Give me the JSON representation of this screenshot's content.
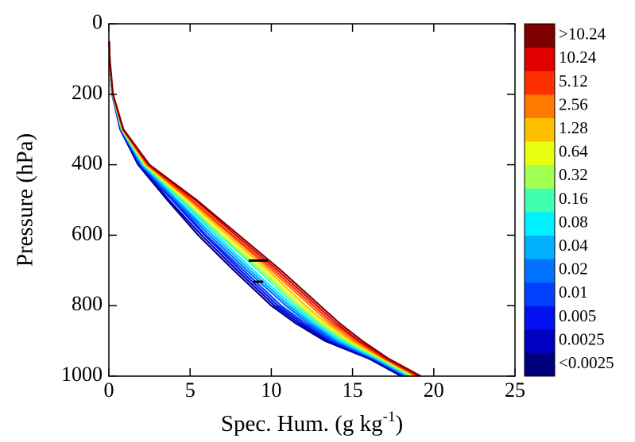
{
  "chart_data": {
    "type": "line",
    "xlabel": [
      "Spec. Hum. (g kg",
      "-1",
      ")"
    ],
    "ylabel": "Pressure (hPa)",
    "xlim": [
      0,
      25
    ],
    "xticks": [
      0,
      5,
      10,
      15,
      20,
      25
    ],
    "ylim": [
      0,
      1000
    ],
    "yticks": [
      0,
      200,
      400,
      600,
      800,
      1000
    ],
    "y_inverted": true,
    "pressure": [
      1000,
      950,
      900,
      850,
      800,
      700,
      600,
      500,
      400,
      300,
      200,
      100,
      50
    ],
    "series": [
      {
        "name": "<0.0025",
        "color": "#00007f",
        "values": [
          18.0,
          16.0,
          13.3,
          11.5,
          10.0,
          7.7,
          5.5,
          3.6,
          1.8,
          0.7,
          0.2,
          0.05,
          0.02
        ]
      },
      {
        "name": "0.0025",
        "color": "#0000c0",
        "values": [
          18.1,
          16.1,
          13.5,
          11.7,
          10.2,
          7.9,
          5.7,
          3.7,
          1.85,
          0.71,
          0.2,
          0.05,
          0.02
        ]
      },
      {
        "name": "0.005",
        "color": "#0010f0",
        "values": [
          18.2,
          16.2,
          13.6,
          11.9,
          10.4,
          8.1,
          5.9,
          3.9,
          1.9,
          0.73,
          0.21,
          0.05,
          0.02
        ]
      },
      {
        "name": "0.01",
        "color": "#0040ff",
        "values": [
          18.3,
          16.3,
          13.8,
          12.1,
          10.6,
          8.3,
          6.0,
          4.0,
          1.95,
          0.74,
          0.21,
          0.05,
          0.02
        ]
      },
      {
        "name": "0.02",
        "color": "#0070ff",
        "values": [
          18.3,
          16.3,
          14.0,
          12.3,
          10.9,
          8.5,
          6.2,
          4.1,
          2.0,
          0.76,
          0.21,
          0.05,
          0.02
        ]
      },
      {
        "name": "0.04",
        "color": "#00b0ff",
        "values": [
          18.4,
          16.4,
          14.1,
          12.5,
          11.1,
          8.7,
          6.4,
          4.2,
          2.05,
          0.77,
          0.22,
          0.05,
          0.02
        ]
      },
      {
        "name": "0.08",
        "color": "#00f0ff",
        "values": [
          18.5,
          16.5,
          14.3,
          12.7,
          11.3,
          8.9,
          6.6,
          4.4,
          2.1,
          0.79,
          0.22,
          0.05,
          0.02
        ]
      },
      {
        "name": "0.16",
        "color": "#40ffb0",
        "values": [
          18.6,
          16.6,
          14.5,
          12.9,
          11.5,
          9.2,
          6.8,
          4.5,
          2.15,
          0.8,
          0.23,
          0.05,
          0.02
        ]
      },
      {
        "name": "0.32",
        "color": "#a0ff50",
        "values": [
          18.7,
          16.7,
          14.6,
          13.0,
          11.7,
          9.4,
          6.9,
          4.6,
          2.2,
          0.81,
          0.23,
          0.05,
          0.02
        ]
      },
      {
        "name": "0.64",
        "color": "#e8ff10",
        "values": [
          18.8,
          16.8,
          14.8,
          13.2,
          11.9,
          9.6,
          7.1,
          4.8,
          2.25,
          0.83,
          0.23,
          0.05,
          0.02
        ]
      },
      {
        "name": "1.28",
        "color": "#ffc000",
        "values": [
          18.9,
          16.9,
          14.9,
          13.4,
          12.1,
          9.8,
          7.3,
          4.9,
          2.3,
          0.84,
          0.24,
          0.05,
          0.02
        ]
      },
      {
        "name": "2.56",
        "color": "#ff7800",
        "values": [
          18.9,
          16.9,
          15.1,
          13.6,
          12.4,
          10.0,
          7.5,
          5.0,
          2.35,
          0.86,
          0.24,
          0.05,
          0.02
        ]
      },
      {
        "name": "5.12",
        "color": "#ff3000",
        "values": [
          19.0,
          17.0,
          15.3,
          13.8,
          12.6,
          10.2,
          7.6,
          5.1,
          2.4,
          0.87,
          0.24,
          0.05,
          0.02
        ]
      },
      {
        "name": "10.24",
        "color": "#e00000",
        "values": [
          19.1,
          17.1,
          15.4,
          14.0,
          12.8,
          10.4,
          7.8,
          5.3,
          2.45,
          0.89,
          0.25,
          0.05,
          0.02
        ]
      },
      {
        "name": ">10.24",
        "color": "#800000",
        "values": [
          19.2,
          17.2,
          15.6,
          14.2,
          13.0,
          10.6,
          8.0,
          5.4,
          2.5,
          0.9,
          0.25,
          0.05,
          0.02
        ]
      }
    ],
    "bars": [
      {
        "x": [
          8.6,
          9.8
        ],
        "y": 672,
        "color": "#000000"
      },
      {
        "x": [
          8.9,
          9.5
        ],
        "y": 732,
        "color": "#000000"
      }
    ]
  }
}
